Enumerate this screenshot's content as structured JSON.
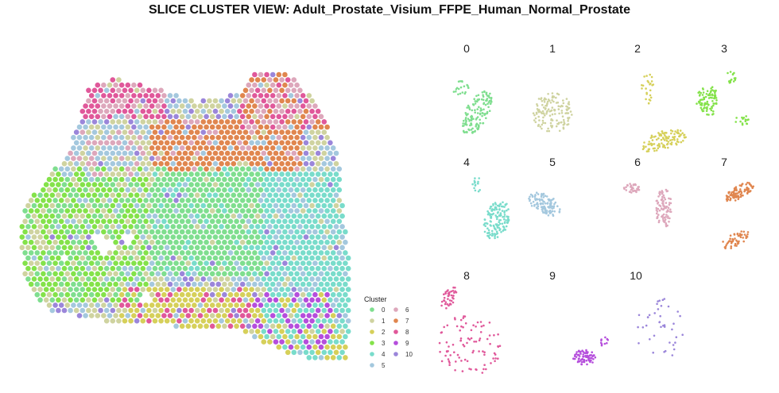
{
  "chart_data": {
    "type": "scatter",
    "title": "SLICE CLUSTER VIEW: Adult_Prostate_Visium_FFPE_Human_Normal_Prostate",
    "legend": {
      "title": "Cluster",
      "placement": "bottom-center",
      "entries": [
        {
          "label": "0",
          "color": "#7FDE8F"
        },
        {
          "label": "1",
          "color": "#CFD3A0"
        },
        {
          "label": "2",
          "color": "#D6D05A"
        },
        {
          "label": "3",
          "color": "#84E24A"
        },
        {
          "label": "4",
          "color": "#79DCCB"
        },
        {
          "label": "5",
          "color": "#A4C8DE"
        },
        {
          "label": "6",
          "color": "#DDA7BB"
        },
        {
          "label": "7",
          "color": "#E0864F"
        },
        {
          "label": "8",
          "color": "#E0589A"
        },
        {
          "label": "9",
          "color": "#B54EDC"
        },
        {
          "label": "10",
          "color": "#9B86DA"
        }
      ]
    },
    "panels": [
      {
        "label": "0"
      },
      {
        "label": "1"
      },
      {
        "label": "2"
      },
      {
        "label": "3"
      },
      {
        "label": "4"
      },
      {
        "label": "5"
      },
      {
        "label": "6"
      },
      {
        "label": "7"
      },
      {
        "label": "8"
      },
      {
        "label": "9"
      },
      {
        "label": "10"
      }
    ],
    "grid": false
  }
}
